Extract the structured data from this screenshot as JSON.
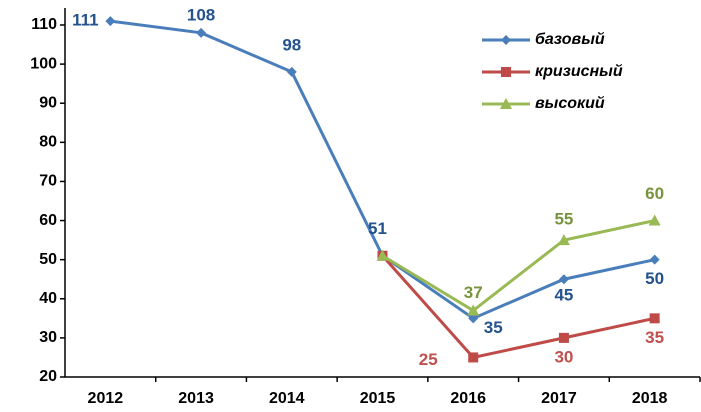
{
  "chart_data": {
    "type": "line",
    "categories": [
      "2012",
      "2013",
      "2014",
      "2015",
      "2016",
      "2017",
      "2018"
    ],
    "series": [
      {
        "name": "базовый",
        "color": "#4a7ebb",
        "label_color": "#23528c",
        "marker": "diamond",
        "values": [
          111,
          108,
          98,
          51,
          35,
          45,
          50
        ],
        "value_labels": [
          "111",
          "108",
          "98",
          "51",
          "35",
          "45",
          "50"
        ]
      },
      {
        "name": "кризисный",
        "color": "#be4b48",
        "label_color": "#c0504d",
        "marker": "square",
        "values": [
          null,
          null,
          null,
          51,
          25,
          30,
          35
        ],
        "value_labels": [
          null,
          null,
          null,
          null,
          "25",
          "30",
          "35"
        ]
      },
      {
        "name": "высокий",
        "color": "#98b954",
        "label_color": "#77933c",
        "marker": "triangle",
        "values": [
          null,
          null,
          null,
          51,
          37,
          55,
          60
        ],
        "value_labels": [
          null,
          null,
          null,
          null,
          "37",
          "55",
          "60"
        ]
      }
    ],
    "ylim": [
      20,
      110
    ],
    "yticks": [
      20,
      30,
      40,
      50,
      60,
      70,
      80,
      90,
      100,
      110
    ],
    "grid": false,
    "legend": "top-right"
  }
}
